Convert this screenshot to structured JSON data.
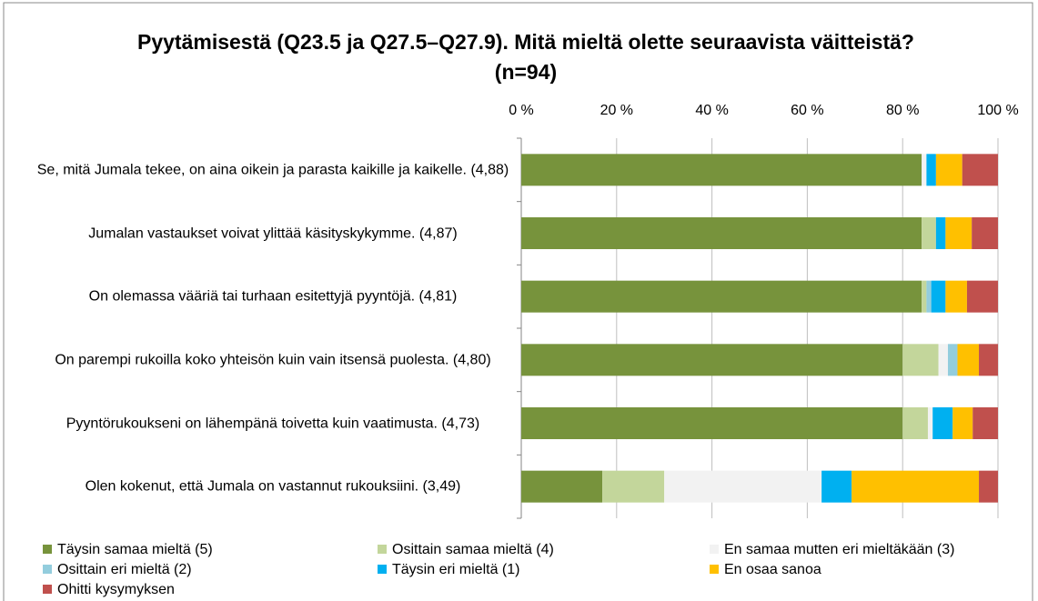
{
  "chart_data": {
    "type": "stacked_bar_horizontal",
    "title": "Pyytämisestä (Q23.5 ja Q27.5–Q27.9). Mitä mieltä olette seuraavista väitteistä? (n=94)",
    "categories": [
      "Se, mitä Jumala tekee, on aina oikein ja parasta kaikille ja kaikelle. (4,88)",
      "Jumalan vastaukset voivat ylittää käsityskykymme. (4,87)",
      "On olemassa vääriä tai turhaan esitettyjä pyyntöjä. (4,81)",
      "On parempi rukoilla koko yhteisön kuin vain itsensä puolesta. (4,80)",
      "Pyyntörukoukseni on lähempänä toivetta kuin vaatimusta. (4,73)",
      "Olen kokenut, että Jumala on vastannut rukouksiini. (3,49)"
    ],
    "series": [
      {
        "name": "Täysin samaa mieltä (5)",
        "color": "#77933c",
        "values": [
          84,
          84,
          84,
          80,
          80,
          17
        ]
      },
      {
        "name": "Osittain samaa mieltä (4)",
        "color": "#c3d69b",
        "values": [
          0,
          3,
          1,
          7.5,
          5.3,
          13
        ]
      },
      {
        "name": "En samaa mutten eri mieltäkään (3)",
        "color": "#f2f2f2",
        "values": [
          1,
          0,
          0,
          2,
          1,
          33
        ]
      },
      {
        "name": "Osittain eri mieltä (2)",
        "color": "#93cddd",
        "values": [
          0,
          0,
          1,
          2,
          0,
          0
        ]
      },
      {
        "name": "Täysin eri mieltä (1)",
        "color": "#00b0f0",
        "values": [
          2,
          2,
          3,
          0,
          4.2,
          6.3
        ]
      },
      {
        "name": "En osaa sanoa",
        "color": "#ffc000",
        "values": [
          5.5,
          5.5,
          4.5,
          4.5,
          4.2,
          26.7
        ]
      },
      {
        "name": "Ohitti kysymyksen",
        "color": "#c0504d",
        "values": [
          7.5,
          5.5,
          6.5,
          4,
          5.3,
          4
        ]
      }
    ],
    "xlim": [
      0,
      100
    ],
    "xticks": [
      {
        "value": 0,
        "label": "0 %"
      },
      {
        "value": 20,
        "label": "20 %"
      },
      {
        "value": 40,
        "label": "40 %"
      },
      {
        "value": 60,
        "label": "60 %"
      },
      {
        "value": 80,
        "label": "80 %"
      },
      {
        "value": 100,
        "label": "100 %"
      }
    ],
    "grid": true,
    "legend": "bottom"
  }
}
